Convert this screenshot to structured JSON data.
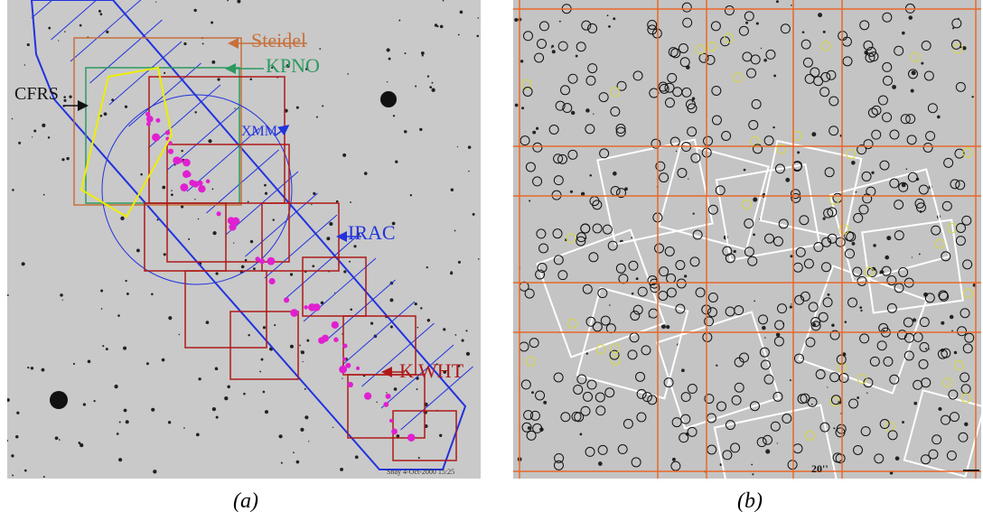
{
  "panel_a": {
    "labels": {
      "steidel": "Steidel",
      "kpno": "KPNO",
      "cfrs": "CFRS",
      "xmm": "XMM",
      "irac": "IRAC",
      "kwht": "K WHT"
    },
    "timestamp": "Snay 4-Oct-2000 15:25",
    "caption": "(a)"
  },
  "panel_b": {
    "scale": "20''",
    "caption": "(b)"
  }
}
